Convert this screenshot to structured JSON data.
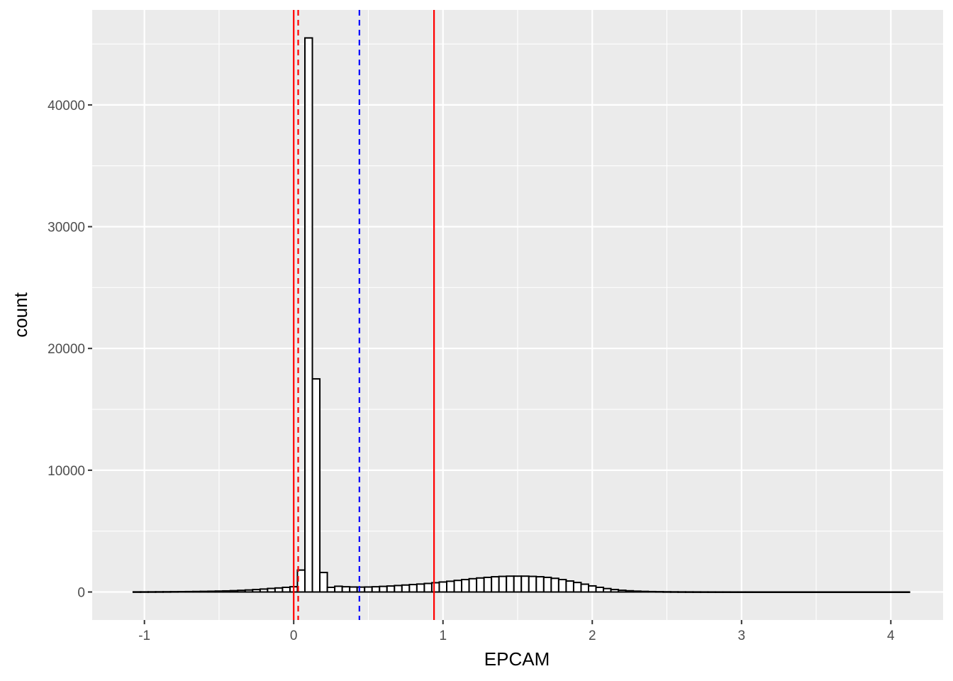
{
  "chart_data": {
    "type": "histogram",
    "xlabel": "EPCAM",
    "ylabel": "count",
    "xlim": [
      -1.35,
      4.35
    ],
    "ylim": [
      -2300,
      47800
    ],
    "x_ticks": [
      -1,
      0,
      1,
      2,
      3,
      4
    ],
    "x_tick_labels": [
      "-1",
      "0",
      "1",
      "2",
      "3",
      "4"
    ],
    "y_ticks": [
      0,
      10000,
      20000,
      30000,
      40000
    ],
    "y_tick_labels": [
      "0",
      "10000",
      "20000",
      "30000",
      "40000"
    ],
    "grid": true,
    "bin_width": 0.05,
    "bins": {
      "start": -1.075,
      "counts": [
        10,
        12,
        14,
        17,
        20,
        25,
        30,
        36,
        44,
        52,
        62,
        76,
        90,
        110,
        135,
        165,
        200,
        240,
        290,
        330,
        380,
        430,
        1800,
        45500,
        17500,
        1600,
        380,
        470,
        430,
        410,
        400,
        410,
        430,
        460,
        490,
        530,
        570,
        610,
        650,
        700,
        760,
        820,
        880,
        950,
        1020,
        1090,
        1150,
        1200,
        1250,
        1280,
        1300,
        1300,
        1300,
        1280,
        1250,
        1200,
        1120,
        1020,
        900,
        780,
        640,
        500,
        380,
        280,
        200,
        140,
        100,
        70,
        50,
        35,
        25,
        18,
        14,
        10,
        8,
        6,
        5,
        4,
        3,
        3,
        2,
        2,
        2,
        1,
        1,
        1,
        1,
        1,
        1,
        1,
        1,
        1,
        1,
        1,
        1,
        1,
        1,
        1,
        1,
        1,
        1,
        1,
        1,
        1
      ]
    },
    "reference_lines": [
      {
        "x": 0.0,
        "color": "#ff0000",
        "style": "solid"
      },
      {
        "x": 0.03,
        "color": "#ff0000",
        "style": "dashed"
      },
      {
        "x": 0.44,
        "color": "#0000ff",
        "style": "dashed"
      },
      {
        "x": 0.94,
        "color": "#ff0000",
        "style": "solid"
      }
    ],
    "colors": {
      "panel_background": "#ebebeb",
      "grid_major": "#ffffff",
      "bar_fill": "#ffffff",
      "bar_outline": "#000000"
    }
  }
}
